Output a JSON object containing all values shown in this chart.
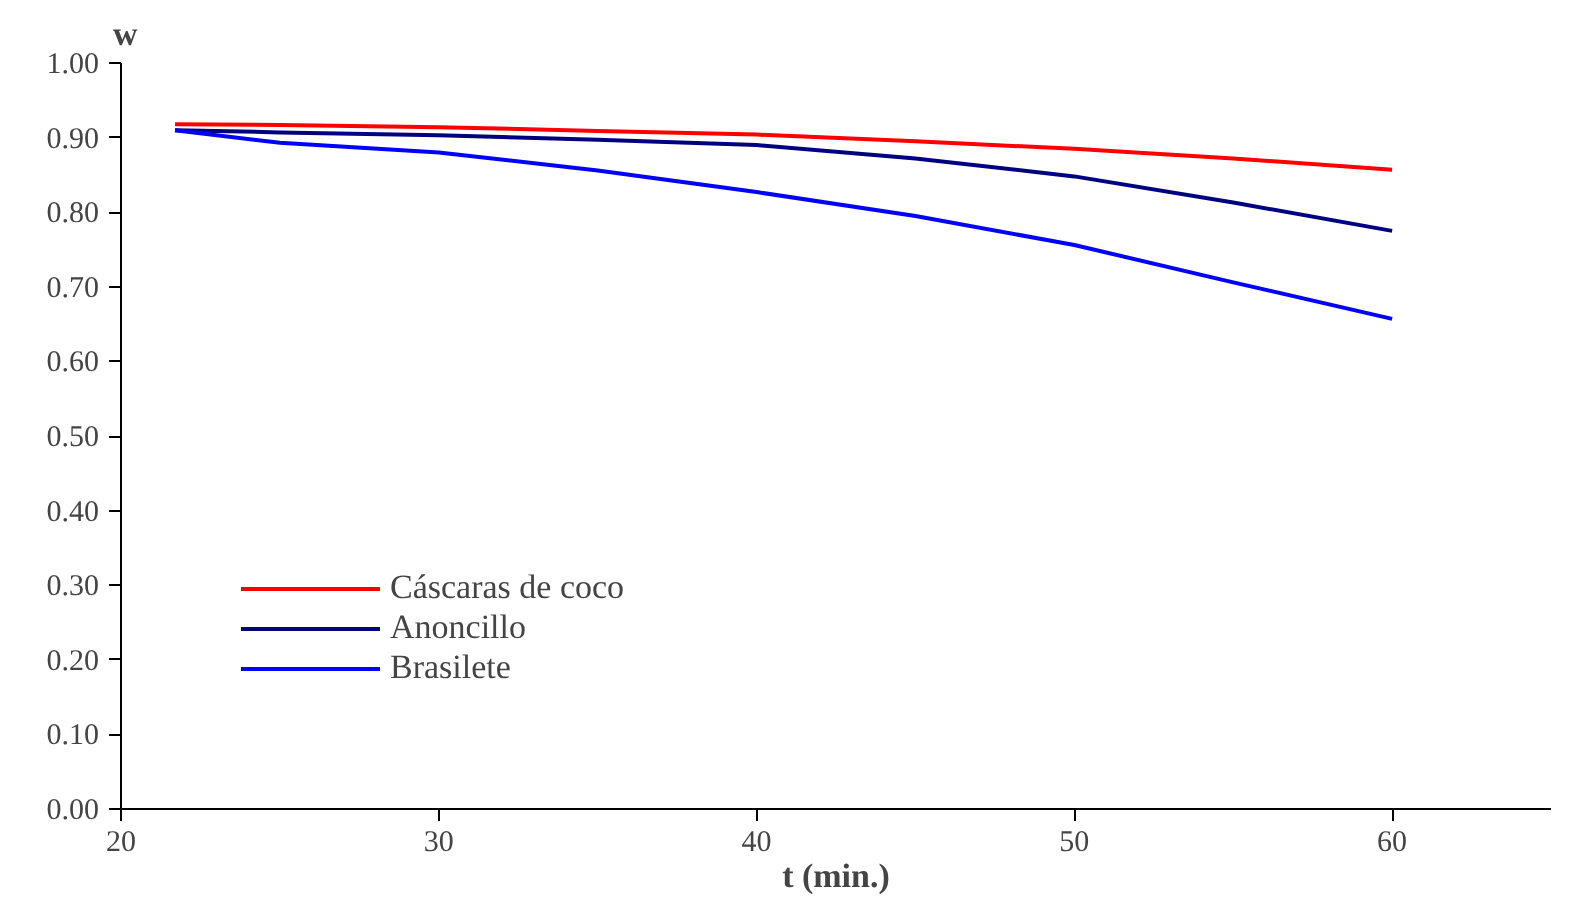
{
  "chart_data": {
    "type": "line",
    "xlabel": "t (min.)",
    "ylabel": "w",
    "xlim": [
      20,
      65
    ],
    "ylim": [
      0,
      1
    ],
    "xticks": [
      20,
      30,
      40,
      50,
      60
    ],
    "yticks": [
      {
        "value": 0,
        "label": "0.00"
      },
      {
        "value": 0.1,
        "label": "0.10"
      },
      {
        "value": 0.2,
        "label": "0.20"
      },
      {
        "value": 0.3,
        "label": "0.30"
      },
      {
        "value": 0.4,
        "label": "0.40"
      },
      {
        "value": 0.5,
        "label": "0.50"
      },
      {
        "value": 0.6,
        "label": "0.60"
      },
      {
        "value": 0.7,
        "label": "0.70"
      },
      {
        "value": 0.8,
        "label": "0.80"
      },
      {
        "value": 0.9,
        "label": "0.90"
      },
      {
        "value": 1,
        "label": "1.00"
      }
    ],
    "x": [
      21.7,
      25,
      30,
      35,
      40,
      45,
      50,
      55,
      60
    ],
    "series": [
      {
        "name": "Cáscaras de coco",
        "color": "#ff0000",
        "values": [
          0.918,
          0.917,
          0.914,
          0.909,
          0.904,
          0.895,
          0.885,
          0.872,
          0.857
        ]
      },
      {
        "name": "Anoncillo",
        "color": "#000080",
        "values": [
          0.91,
          0.907,
          0.903,
          0.897,
          0.89,
          0.872,
          0.848,
          0.813,
          0.775
        ]
      },
      {
        "name": "Brasilete",
        "color": "#0000ff",
        "values": [
          0.91,
          0.893,
          0.88,
          0.856,
          0.827,
          0.795,
          0.756,
          0.706,
          0.657
        ]
      }
    ],
    "legend": "bottom left",
    "grid": false,
    "line_style": "solid",
    "marker": "none"
  }
}
